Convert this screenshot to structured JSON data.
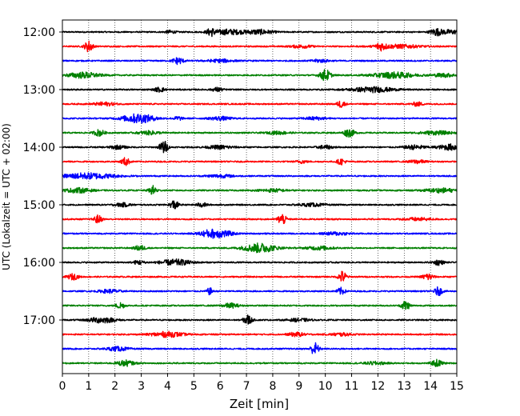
{
  "chart_data": {
    "type": "line",
    "title": "",
    "xlabel": "Zeit  [min]",
    "ylabel": "UTC (Lokalzeit = UTC + 02:00)",
    "xlim": [
      0,
      15
    ],
    "x_ticks": [
      "0",
      "1",
      "2",
      "3",
      "4",
      "5",
      "6",
      "7",
      "8",
      "9",
      "10",
      "11",
      "12",
      "13",
      "14",
      "15"
    ],
    "y_tick_labels": [
      "12:00",
      "13:00",
      "14:00",
      "15:00",
      "16:00",
      "17:00"
    ],
    "grid": "vertical dotted lines at each minute",
    "legend": "none",
    "trace_interval_minutes": 15,
    "trace_colors": [
      "#000000",
      "#ff0000",
      "#0000ff",
      "#008000"
    ],
    "series": [
      {
        "start": "12:00",
        "color": "#000000",
        "events": [
          [
            4.1,
            0.25,
            0.2
          ],
          [
            5.65,
            0.6,
            0.15
          ],
          [
            6.3,
            0.45,
            0.6
          ],
          [
            7.5,
            0.4,
            0.5
          ],
          [
            14.2,
            0.5,
            0.2
          ],
          [
            14.7,
            0.35,
            0.5
          ]
        ]
      },
      {
        "start": "12:15",
        "color": "#ff0000",
        "events": [
          [
            1.0,
            1.0,
            0.15
          ],
          [
            9.1,
            0.25,
            0.4
          ],
          [
            12.1,
            0.6,
            0.2
          ],
          [
            12.8,
            0.3,
            0.8
          ]
        ]
      },
      {
        "start": "12:30",
        "color": "#0000ff",
        "events": [
          [
            4.4,
            0.6,
            0.2
          ],
          [
            6.0,
            0.25,
            0.5
          ],
          [
            9.8,
            0.25,
            0.3
          ]
        ]
      },
      {
        "start": "12:45",
        "color": "#008000",
        "events": [
          [
            0.8,
            0.5,
            0.6
          ],
          [
            10.0,
            1.0,
            0.2
          ],
          [
            12.6,
            0.5,
            0.8
          ],
          [
            14.5,
            0.3,
            0.4
          ]
        ]
      },
      {
        "start": "13:00",
        "color": "#000000",
        "events": [
          [
            3.7,
            0.4,
            0.2
          ],
          [
            5.9,
            0.35,
            0.2
          ],
          [
            11.8,
            0.45,
            0.8
          ]
        ]
      },
      {
        "start": "13:15",
        "color": "#ff0000",
        "events": [
          [
            1.6,
            0.3,
            0.4
          ],
          [
            10.6,
            0.6,
            0.15
          ],
          [
            13.5,
            0.35,
            0.2
          ]
        ]
      },
      {
        "start": "13:30",
        "color": "#0000ff",
        "events": [
          [
            2.9,
            0.8,
            0.6
          ],
          [
            4.4,
            0.35,
            0.15
          ],
          [
            6.0,
            0.3,
            0.4
          ],
          [
            9.6,
            0.25,
            0.4
          ]
        ]
      },
      {
        "start": "13:45",
        "color": "#008000",
        "events": [
          [
            1.4,
            0.55,
            0.2
          ],
          [
            3.3,
            0.3,
            0.4
          ],
          [
            8.2,
            0.25,
            0.4
          ],
          [
            10.9,
            0.7,
            0.2
          ],
          [
            14.2,
            0.3,
            0.6
          ]
        ]
      },
      {
        "start": "14:00",
        "color": "#000000",
        "events": [
          [
            2.1,
            0.3,
            0.3
          ],
          [
            3.85,
            1.2,
            0.15
          ],
          [
            6.0,
            0.3,
            0.5
          ],
          [
            10.0,
            0.3,
            0.3
          ],
          [
            13.4,
            0.35,
            0.4
          ],
          [
            14.8,
            0.5,
            0.5
          ]
        ]
      },
      {
        "start": "14:15",
        "color": "#ff0000",
        "events": [
          [
            2.4,
            0.7,
            0.15
          ],
          [
            9.1,
            0.25,
            0.2
          ],
          [
            10.6,
            0.5,
            0.15
          ],
          [
            13.5,
            0.3,
            0.3
          ]
        ]
      },
      {
        "start": "14:30",
        "color": "#0000ff",
        "events": [
          [
            1.0,
            0.5,
            1.0
          ],
          [
            6.0,
            0.25,
            0.5
          ]
        ]
      },
      {
        "start": "14:45",
        "color": "#008000",
        "events": [
          [
            0.6,
            0.4,
            0.5
          ],
          [
            3.45,
            0.8,
            0.15
          ],
          [
            8.0,
            0.25,
            0.5
          ],
          [
            14.4,
            0.35,
            0.6
          ]
        ]
      },
      {
        "start": "15:00",
        "color": "#000000",
        "events": [
          [
            2.3,
            0.3,
            0.3
          ],
          [
            4.25,
            0.8,
            0.15
          ],
          [
            5.3,
            0.35,
            0.2
          ],
          [
            9.5,
            0.25,
            0.5
          ]
        ]
      },
      {
        "start": "15:15",
        "color": "#ff0000",
        "events": [
          [
            1.35,
            0.7,
            0.15
          ],
          [
            8.35,
            1.0,
            0.15
          ],
          [
            13.5,
            0.25,
            0.5
          ]
        ]
      },
      {
        "start": "15:30",
        "color": "#0000ff",
        "events": [
          [
            5.6,
            0.6,
            0.4
          ],
          [
            6.1,
            0.5,
            0.4
          ],
          [
            10.4,
            0.25,
            0.5
          ]
        ]
      },
      {
        "start": "15:45",
        "color": "#008000",
        "events": [
          [
            2.95,
            0.45,
            0.2
          ],
          [
            7.5,
            0.8,
            0.6
          ],
          [
            9.8,
            0.3,
            0.5
          ]
        ]
      },
      {
        "start": "16:00",
        "color": "#000000",
        "events": [
          [
            2.9,
            0.35,
            0.2
          ],
          [
            4.3,
            0.5,
            0.6
          ],
          [
            14.3,
            0.45,
            0.2
          ]
        ]
      },
      {
        "start": "16:15",
        "color": "#ff0000",
        "events": [
          [
            0.4,
            0.5,
            0.2
          ],
          [
            10.65,
            1.0,
            0.15
          ],
          [
            13.9,
            0.6,
            0.2
          ]
        ]
      },
      {
        "start": "16:30",
        "color": "#0000ff",
        "events": [
          [
            1.8,
            0.3,
            0.4
          ],
          [
            5.6,
            0.6,
            0.1
          ],
          [
            10.6,
            0.6,
            0.15
          ],
          [
            14.3,
            0.7,
            0.15
          ]
        ]
      },
      {
        "start": "16:45",
        "color": "#008000",
        "events": [
          [
            2.2,
            0.6,
            0.15
          ],
          [
            6.4,
            0.4,
            0.3
          ],
          [
            13.05,
            0.9,
            0.15
          ]
        ]
      },
      {
        "start": "17:00",
        "color": "#000000",
        "events": [
          [
            1.5,
            0.5,
            0.5
          ],
          [
            7.05,
            0.9,
            0.15
          ],
          [
            9.0,
            0.25,
            0.4
          ]
        ]
      },
      {
        "start": "17:15",
        "color": "#ff0000",
        "events": [
          [
            4.0,
            0.45,
            0.6
          ],
          [
            8.9,
            0.35,
            0.3
          ],
          [
            10.6,
            0.25,
            0.4
          ]
        ]
      },
      {
        "start": "17:30",
        "color": "#0000ff",
        "events": [
          [
            2.1,
            0.35,
            0.4
          ],
          [
            9.6,
            1.1,
            0.15
          ]
        ]
      },
      {
        "start": "17:45",
        "color": "#008000",
        "events": [
          [
            2.4,
            0.5,
            0.3
          ],
          [
            11.9,
            0.25,
            0.4
          ],
          [
            14.25,
            0.6,
            0.2
          ]
        ]
      }
    ]
  }
}
